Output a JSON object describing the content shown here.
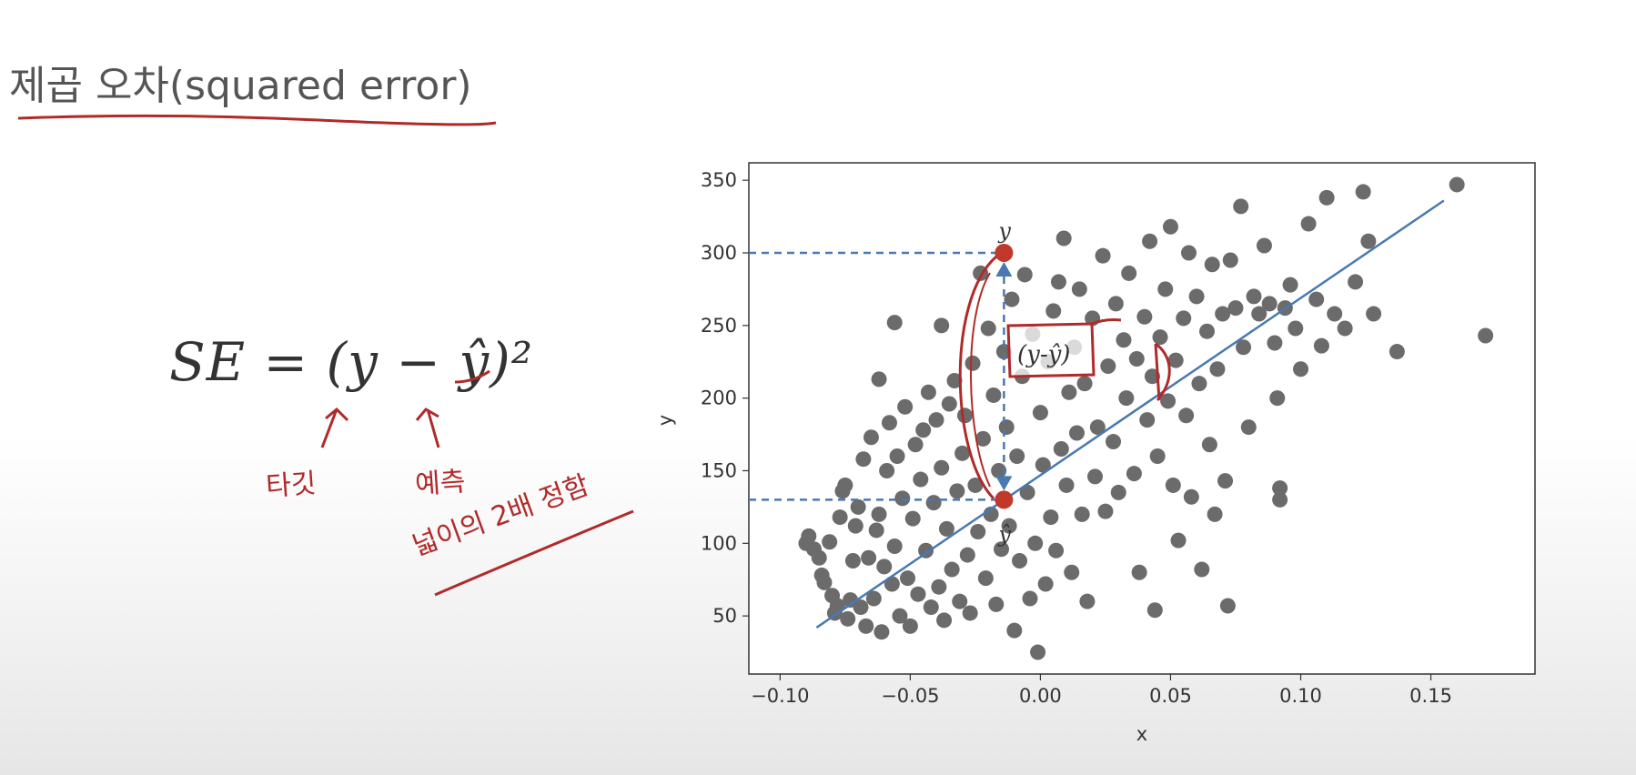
{
  "slide": {
    "title": "제곱 오차(squared error)",
    "formula": "SE = (y − ŷ)²",
    "annotations": {
      "target": "타깃",
      "prediction": "예측",
      "note": "넓이의 2배 정함",
      "diff": "(y-ŷ)",
      "y_marker": "y",
      "yhat_marker": "ŷ"
    },
    "colors": {
      "handwriting": "#b12a2a",
      "points": "#6b6b6b",
      "line": "#4a78b0"
    }
  },
  "chart_data": {
    "type": "scatter",
    "xlabel": "x",
    "ylabel": "y",
    "xlim": [
      -0.112,
      0.19
    ],
    "ylim": [
      10,
      362
    ],
    "xticks": [
      -0.1,
      -0.05,
      0.0,
      0.05,
      0.1,
      0.15
    ],
    "xtick_labels": [
      "−0.10",
      "−0.05",
      "0.00",
      "0.05",
      "0.10",
      "0.15"
    ],
    "yticks": [
      50,
      100,
      150,
      200,
      250,
      300,
      350
    ],
    "ytick_labels": [
      "50",
      "100",
      "150",
      "200",
      "250",
      "300",
      "350"
    ],
    "grid": false,
    "highlight": {
      "x": -0.014,
      "y": 300,
      "y_hat": 130
    },
    "fit_line": {
      "x": [
        -0.086,
        0.155
      ],
      "y": [
        42,
        336
      ]
    },
    "points": [
      [
        -0.09,
        100
      ],
      [
        -0.089,
        105
      ],
      [
        -0.087,
        96
      ],
      [
        -0.085,
        90
      ],
      [
        -0.084,
        78
      ],
      [
        -0.083,
        73
      ],
      [
        -0.081,
        101
      ],
      [
        -0.08,
        64
      ],
      [
        -0.079,
        52
      ],
      [
        -0.078,
        57
      ],
      [
        -0.077,
        118
      ],
      [
        -0.076,
        136
      ],
      [
        -0.075,
        140
      ],
      [
        -0.074,
        48
      ],
      [
        -0.073,
        61
      ],
      [
        -0.072,
        88
      ],
      [
        -0.071,
        112
      ],
      [
        -0.07,
        125
      ],
      [
        -0.069,
        56
      ],
      [
        -0.068,
        158
      ],
      [
        -0.067,
        43
      ],
      [
        -0.066,
        90
      ],
      [
        -0.065,
        173
      ],
      [
        -0.064,
        62
      ],
      [
        -0.063,
        109
      ],
      [
        -0.062,
        213
      ],
      [
        -0.062,
        120
      ],
      [
        -0.061,
        39
      ],
      [
        -0.06,
        84
      ],
      [
        -0.059,
        150
      ],
      [
        -0.058,
        183
      ],
      [
        -0.057,
        72
      ],
      [
        -0.056,
        252
      ],
      [
        -0.056,
        98
      ],
      [
        -0.055,
        160
      ],
      [
        -0.054,
        50
      ],
      [
        -0.053,
        131
      ],
      [
        -0.052,
        194
      ],
      [
        -0.051,
        76
      ],
      [
        -0.05,
        43
      ],
      [
        -0.049,
        117
      ],
      [
        -0.048,
        168
      ],
      [
        -0.047,
        65
      ],
      [
        -0.046,
        144
      ],
      [
        -0.045,
        178
      ],
      [
        -0.044,
        95
      ],
      [
        -0.043,
        204
      ],
      [
        -0.042,
        56
      ],
      [
        -0.041,
        128
      ],
      [
        -0.04,
        185
      ],
      [
        -0.039,
        70
      ],
      [
        -0.038,
        250
      ],
      [
        -0.038,
        152
      ],
      [
        -0.037,
        47
      ],
      [
        -0.036,
        110
      ],
      [
        -0.035,
        196
      ],
      [
        -0.034,
        82
      ],
      [
        -0.033,
        212
      ],
      [
        -0.032,
        136
      ],
      [
        -0.031,
        60
      ],
      [
        -0.03,
        162
      ],
      [
        -0.029,
        188
      ],
      [
        -0.028,
        92
      ],
      [
        -0.027,
        52
      ],
      [
        -0.026,
        224
      ],
      [
        -0.025,
        140
      ],
      [
        -0.024,
        108
      ],
      [
        -0.023,
        286
      ],
      [
        -0.022,
        172
      ],
      [
        -0.021,
        76
      ],
      [
        -0.02,
        248
      ],
      [
        -0.019,
        120
      ],
      [
        -0.018,
        202
      ],
      [
        -0.017,
        58
      ],
      [
        -0.016,
        150
      ],
      [
        -0.015,
        96
      ],
      [
        -0.014,
        232
      ],
      [
        -0.013,
        180
      ],
      [
        -0.012,
        112
      ],
      [
        -0.011,
        268
      ],
      [
        -0.01,
        40
      ],
      [
        -0.009,
        160
      ],
      [
        -0.008,
        88
      ],
      [
        -0.007,
        215
      ],
      [
        -0.006,
        285
      ],
      [
        -0.005,
        135
      ],
      [
        -0.004,
        62
      ],
      [
        -0.003,
        244
      ],
      [
        -0.002,
        100
      ],
      [
        -0.001,
        25
      ],
      [
        0.0,
        190
      ],
      [
        0.001,
        154
      ],
      [
        0.002,
        72
      ],
      [
        0.003,
        225
      ],
      [
        0.004,
        118
      ],
      [
        0.005,
        260
      ],
      [
        0.006,
        95
      ],
      [
        0.007,
        280
      ],
      [
        0.008,
        165
      ],
      [
        0.009,
        310
      ],
      [
        0.01,
        140
      ],
      [
        0.011,
        204
      ],
      [
        0.012,
        80
      ],
      [
        0.013,
        235
      ],
      [
        0.014,
        176
      ],
      [
        0.015,
        275
      ],
      [
        0.016,
        120
      ],
      [
        0.017,
        210
      ],
      [
        0.018,
        60
      ],
      [
        0.02,
        255
      ],
      [
        0.021,
        146
      ],
      [
        0.022,
        180
      ],
      [
        0.024,
        298
      ],
      [
        0.025,
        122
      ],
      [
        0.026,
        222
      ],
      [
        0.028,
        170
      ],
      [
        0.029,
        265
      ],
      [
        0.03,
        135
      ],
      [
        0.032,
        240
      ],
      [
        0.033,
        200
      ],
      [
        0.034,
        286
      ],
      [
        0.036,
        148
      ],
      [
        0.037,
        227
      ],
      [
        0.038,
        80
      ],
      [
        0.04,
        256
      ],
      [
        0.041,
        185
      ],
      [
        0.042,
        308
      ],
      [
        0.043,
        215
      ],
      [
        0.044,
        54
      ],
      [
        0.045,
        160
      ],
      [
        0.046,
        242
      ],
      [
        0.048,
        275
      ],
      [
        0.049,
        198
      ],
      [
        0.05,
        318
      ],
      [
        0.051,
        140
      ],
      [
        0.052,
        226
      ],
      [
        0.053,
        102
      ],
      [
        0.055,
        255
      ],
      [
        0.056,
        188
      ],
      [
        0.057,
        300
      ],
      [
        0.058,
        132
      ],
      [
        0.06,
        270
      ],
      [
        0.061,
        210
      ],
      [
        0.062,
        82
      ],
      [
        0.064,
        246
      ],
      [
        0.065,
        168
      ],
      [
        0.066,
        292
      ],
      [
        0.067,
        120
      ],
      [
        0.068,
        220
      ],
      [
        0.07,
        258
      ],
      [
        0.071,
        143
      ],
      [
        0.072,
        57
      ],
      [
        0.073,
        295
      ],
      [
        0.075,
        262
      ],
      [
        0.077,
        332
      ],
      [
        0.078,
        235
      ],
      [
        0.08,
        180
      ],
      [
        0.082,
        270
      ],
      [
        0.084,
        258
      ],
      [
        0.086,
        305
      ],
      [
        0.088,
        265
      ],
      [
        0.09,
        238
      ],
      [
        0.091,
        200
      ],
      [
        0.092,
        138
      ],
      [
        0.092,
        130
      ],
      [
        0.094,
        262
      ],
      [
        0.096,
        278
      ],
      [
        0.098,
        248
      ],
      [
        0.1,
        220
      ],
      [
        0.103,
        320
      ],
      [
        0.106,
        268
      ],
      [
        0.108,
        236
      ],
      [
        0.11,
        338
      ],
      [
        0.113,
        258
      ],
      [
        0.117,
        248
      ],
      [
        0.121,
        280
      ],
      [
        0.124,
        342
      ],
      [
        0.126,
        308
      ],
      [
        0.128,
        258
      ],
      [
        0.137,
        232
      ],
      [
        0.16,
        347
      ],
      [
        0.171,
        243
      ]
    ]
  }
}
